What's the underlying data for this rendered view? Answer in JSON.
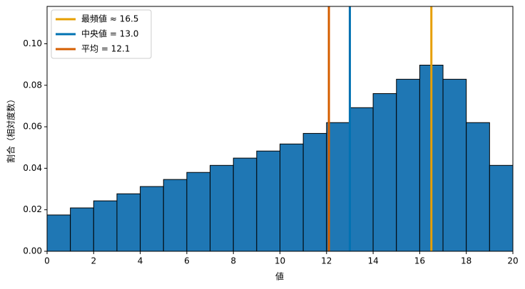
{
  "chart_data": {
    "type": "histogram",
    "xlabel": "値",
    "ylabel": "割合（相対度数）",
    "bins": [
      0,
      1,
      2,
      3,
      4,
      5,
      6,
      7,
      8,
      9,
      10,
      11,
      12,
      13,
      14,
      15,
      16,
      17,
      18,
      19,
      20
    ],
    "values": [
      0.0175,
      0.0209,
      0.0243,
      0.0277,
      0.0312,
      0.0346,
      0.038,
      0.0414,
      0.0449,
      0.0483,
      0.0517,
      0.0568,
      0.062,
      0.0692,
      0.076,
      0.0829,
      0.0897,
      0.0829,
      0.062,
      0.0414
    ],
    "color": "#1f77b4",
    "edgecolor": "#000000",
    "lines": [
      {
        "name": "最頻値 ≈ 16.5",
        "x": 16.5,
        "color": "#e69f00"
      },
      {
        "name": "中央値 = 13.0",
        "x": 13.0,
        "color": "#0072b2"
      },
      {
        "name": "平均 = 12.1",
        "x": 12.1,
        "color": "#d55e00"
      }
    ],
    "xlim": [
      0,
      20
    ],
    "ylim": [
      0,
      0.118
    ],
    "xticks": [
      0,
      2,
      4,
      6,
      8,
      10,
      12,
      14,
      16,
      18,
      20
    ],
    "yticks": [
      {
        "value": 0,
        "label": "0.00"
      },
      {
        "value": 0.02,
        "label": "0.02"
      },
      {
        "value": 0.04,
        "label": "0.04"
      },
      {
        "value": 0.06,
        "label": "0.06"
      },
      {
        "value": 0.08,
        "label": "0.08"
      },
      {
        "value": 0.1,
        "label": "0.10"
      }
    ],
    "legend": "upper left"
  }
}
